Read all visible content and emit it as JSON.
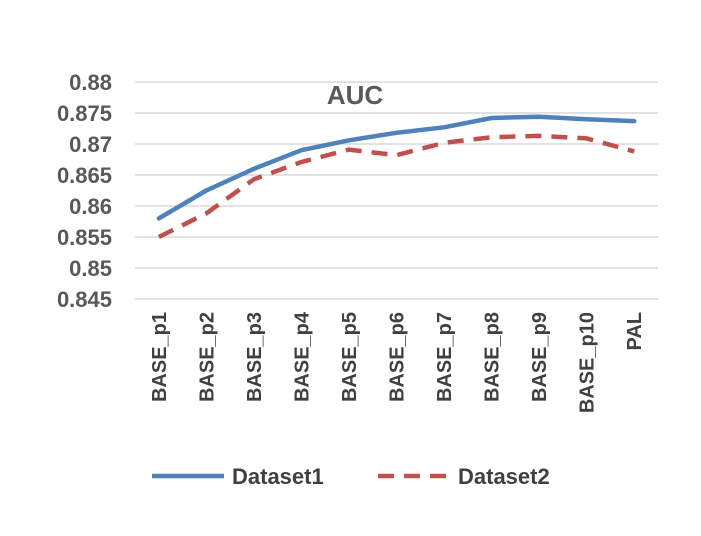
{
  "chart_data": {
    "type": "line",
    "title": "AUC",
    "xlabel": "",
    "ylabel": "",
    "categories": [
      "BASE_p1",
      "BASE_p2",
      "BASE_p3",
      "BASE_p4",
      "BASE_p5",
      "BASE_p6",
      "BASE_p7",
      "BASE_p8",
      "BASE_p9",
      "BASE_p10",
      "PAL"
    ],
    "yticks": [
      "0.88",
      "0.875",
      "0.87",
      "0.865",
      "0.86",
      "0.855",
      "0.85",
      "0.845"
    ],
    "ylim": [
      0.845,
      0.88
    ],
    "grid": true,
    "legend_position": "bottom",
    "series": [
      {
        "name": "Dataset1",
        "color": "#4f81bd",
        "style": "solid",
        "values": [
          0.858,
          0.8625,
          0.866,
          0.869,
          0.8706,
          0.8718,
          0.8727,
          0.8742,
          0.8744,
          0.874,
          0.8737
        ]
      },
      {
        "name": "Dataset2",
        "color": "#c0504d",
        "style": "dashed",
        "values": [
          0.855,
          0.8588,
          0.8643,
          0.8671,
          0.8691,
          0.8682,
          0.8702,
          0.8711,
          0.8713,
          0.8709,
          0.8688
        ]
      }
    ]
  }
}
